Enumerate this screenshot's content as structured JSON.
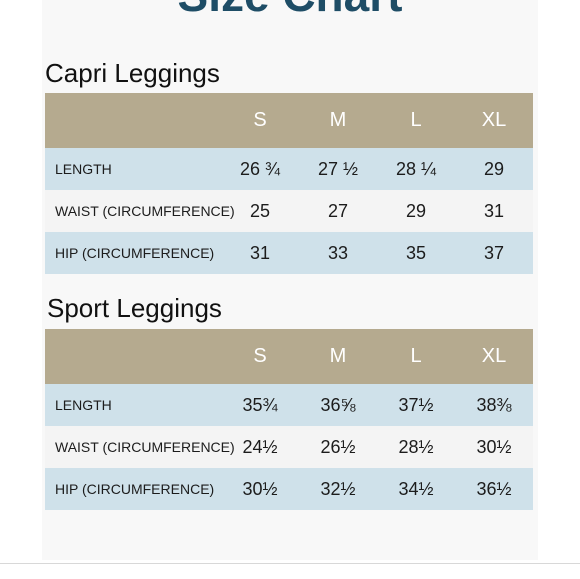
{
  "chart_title": "Size Chart",
  "capri": {
    "title": "Capri Leggings",
    "sizes": [
      "S",
      "M",
      "L",
      "XL"
    ],
    "rows": [
      {
        "label": "LENGTH",
        "values": [
          "26 ¾",
          "27 ½",
          "28 ¼",
          "29"
        ]
      },
      {
        "label": "WAIST (CIRCUMFERENCE)",
        "values": [
          "25",
          "27",
          "29",
          "31"
        ]
      },
      {
        "label": "HIP (CIRCUMFERENCE)",
        "values": [
          "31",
          "33",
          "35",
          "37"
        ]
      }
    ]
  },
  "sport": {
    "title": "Sport Leggings",
    "sizes": [
      "S",
      "M",
      "L",
      "XL"
    ],
    "rows": [
      {
        "label": "LENGTH",
        "values": [
          "35¾",
          "36⅝",
          "37½",
          "38⅜"
        ]
      },
      {
        "label": "WAIST (CIRCUMFERENCE)",
        "values": [
          "24½",
          "26½",
          "28½",
          "30½"
        ]
      },
      {
        "label": "HIP (CIRCUMFERENCE)",
        "values": [
          "30½",
          "32½",
          "34½",
          "36½"
        ]
      }
    ]
  },
  "colors": {
    "header": "#b5aa8f",
    "row_blue": "#cfe1ea",
    "row_white": "#f4f4f4",
    "title": "#1e4d66"
  }
}
